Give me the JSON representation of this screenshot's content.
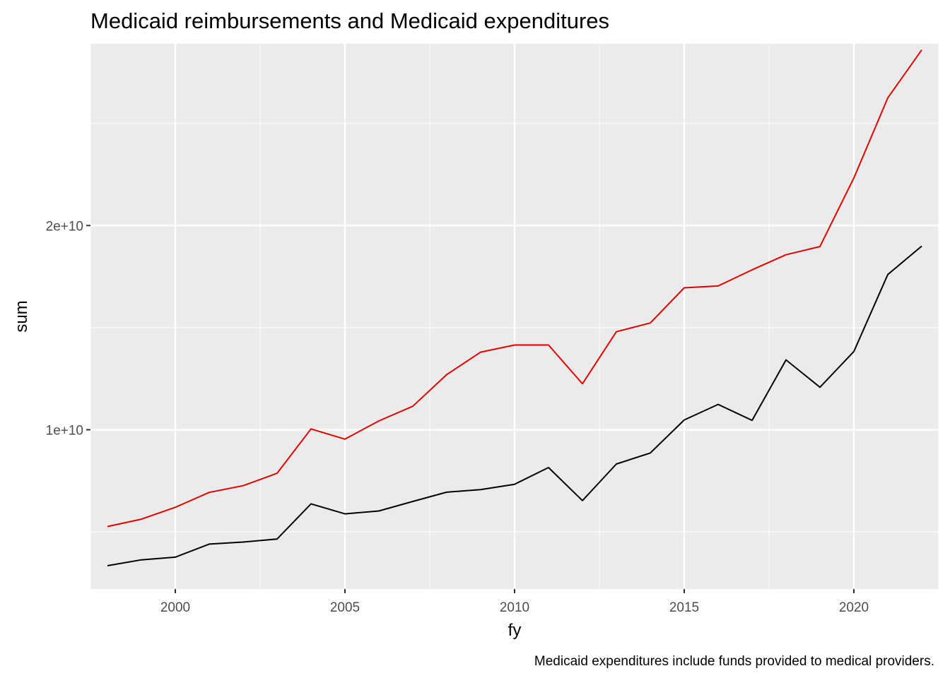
{
  "chart_data": {
    "type": "line",
    "title": "Medicaid reimbursements and Medicaid expenditures",
    "xlabel": "fy",
    "ylabel": "sum",
    "caption": "Medicaid expenditures include funds provided to medical providers.",
    "xlim": [
      1997.5,
      2022.5
    ],
    "ylim": [
      2200000000,
      28900000000
    ],
    "x_ticks": [
      2000,
      2005,
      2010,
      2015,
      2020
    ],
    "x_tick_labels": [
      "2000",
      "2005",
      "2010",
      "2015",
      "2020"
    ],
    "y_ticks": [
      10000000000,
      20000000000
    ],
    "y_tick_labels": [
      "1e+10",
      "2e+10"
    ],
    "grid": true,
    "legend": "none",
    "x": [
      1998,
      1999,
      2000,
      2001,
      2002,
      2003,
      2004,
      2005,
      2006,
      2007,
      2008,
      2009,
      2010,
      2011,
      2012,
      2013,
      2014,
      2015,
      2016,
      2017,
      2018,
      2019,
      2020,
      2021,
      2022
    ],
    "series": [
      {
        "color": "#e00000",
        "values": [
          5260000000,
          5620000000,
          6200000000,
          6930000000,
          7260000000,
          7870000000,
          10040000000,
          9540000000,
          10430000000,
          11150000000,
          12700000000,
          13800000000,
          14150000000,
          14150000000,
          12250000000,
          14800000000,
          15230000000,
          16950000000,
          17040000000,
          17830000000,
          18570000000,
          18970000000,
          22330000000,
          26250000000,
          28600000000
        ]
      },
      {
        "color": "#000000",
        "values": [
          3340000000,
          3630000000,
          3760000000,
          4400000000,
          4500000000,
          4650000000,
          6370000000,
          5880000000,
          6020000000,
          6490000000,
          6940000000,
          7070000000,
          7330000000,
          8150000000,
          6530000000,
          8320000000,
          8860000000,
          10480000000,
          11240000000,
          10460000000,
          13420000000,
          12080000000,
          13830000000,
          17600000000,
          18990000000
        ]
      }
    ]
  }
}
